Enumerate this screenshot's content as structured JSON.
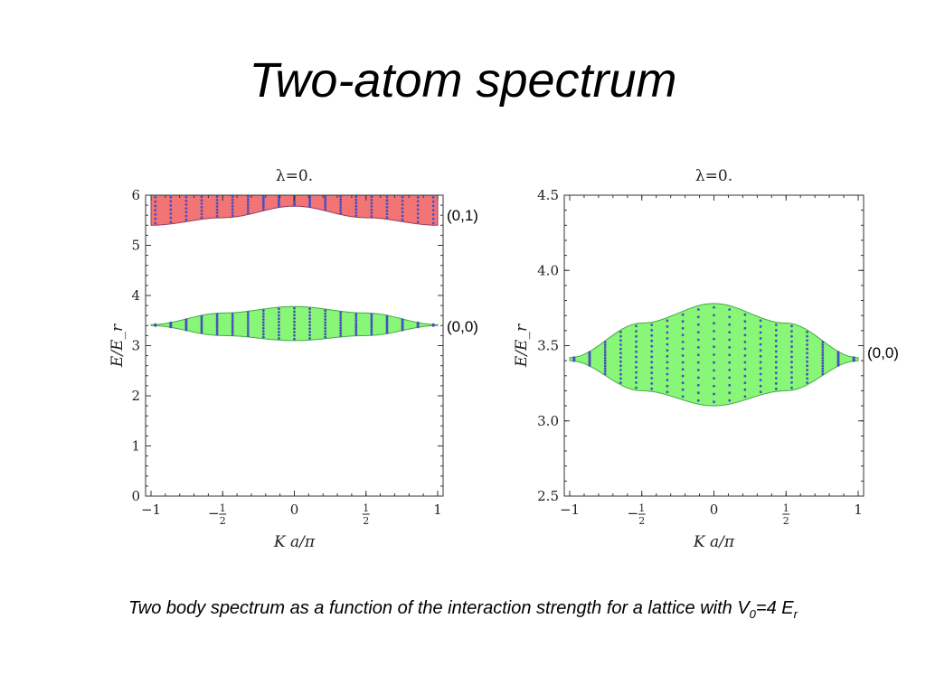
{
  "slide": {
    "title": "Two-atom spectrum",
    "caption": {
      "prefix": "Two body spectrum as a function of the interaction strength for a lattice with V",
      "v_sub": "0",
      "middle": "=4 E",
      "e_sub": "r"
    }
  },
  "colors": {
    "band_00_fill": "#88f777",
    "band_01_fill": "#f27475",
    "band_edge_00": "#44aa44",
    "band_edge_01": "#9a3a55",
    "dots": "#4a4fc0",
    "axis": "#333333"
  },
  "chart_data": [
    {
      "type": "area",
      "title": "λ=0.",
      "xlabel": "K a/π",
      "ylabel": "E/E_r",
      "xlim": [
        -1,
        1
      ],
      "ylim": [
        0,
        6
      ],
      "xticks": [
        -1,
        -0.5,
        0,
        0.5,
        1
      ],
      "xtick_labels": [
        {
          "main": "−1"
        },
        {
          "sign": "−",
          "num": "1",
          "den": "2"
        },
        {
          "main": "0"
        },
        {
          "num": "1",
          "den": "2"
        },
        {
          "main": "1"
        }
      ],
      "yticks": [
        0,
        1,
        2,
        3,
        4,
        5,
        6
      ],
      "ytick_labels": [
        "0",
        "1",
        "2",
        "3",
        "4",
        "5",
        "6"
      ],
      "bands": [
        {
          "name": "(0,0)",
          "label": "(0,0)",
          "x": [
            -1,
            -0.5,
            0,
            0.5,
            1
          ],
          "lower": [
            3.4,
            3.2,
            3.1,
            3.2,
            3.4
          ],
          "upper": [
            3.42,
            3.65,
            3.78,
            3.65,
            3.42
          ],
          "color": "#88f777"
        },
        {
          "name": "(0,1)",
          "label": "(0,1)",
          "x": [
            -1,
            -0.5,
            0,
            0.5,
            1
          ],
          "lower": [
            5.4,
            5.55,
            5.78,
            5.55,
            5.4
          ],
          "upper": [
            6.0,
            6.0,
            6.0,
            6.0,
            6.0
          ],
          "color": "#f27475"
        }
      ]
    },
    {
      "type": "area",
      "title": "λ=0.",
      "xlabel": "K a/π",
      "ylabel": "E/E_r",
      "xlim": [
        -1,
        1
      ],
      "ylim": [
        2.5,
        4.5
      ],
      "xticks": [
        -1,
        -0.5,
        0,
        0.5,
        1
      ],
      "xtick_labels": [
        {
          "main": "−1"
        },
        {
          "sign": "−",
          "num": "1",
          "den": "2"
        },
        {
          "main": "0"
        },
        {
          "num": "1",
          "den": "2"
        },
        {
          "main": "1"
        }
      ],
      "yticks": [
        2.5,
        3.0,
        3.5,
        4.0,
        4.5
      ],
      "ytick_labels": [
        "2.5",
        "3.0",
        "3.5",
        "4.0",
        "4.5"
      ],
      "bands": [
        {
          "name": "(0,0)",
          "label": "(0,0)",
          "x": [
            -1,
            -0.5,
            0,
            0.5,
            1
          ],
          "lower": [
            3.4,
            3.2,
            3.1,
            3.2,
            3.4
          ],
          "upper": [
            3.42,
            3.65,
            3.78,
            3.65,
            3.42
          ],
          "color": "#88f777"
        }
      ]
    }
  ]
}
